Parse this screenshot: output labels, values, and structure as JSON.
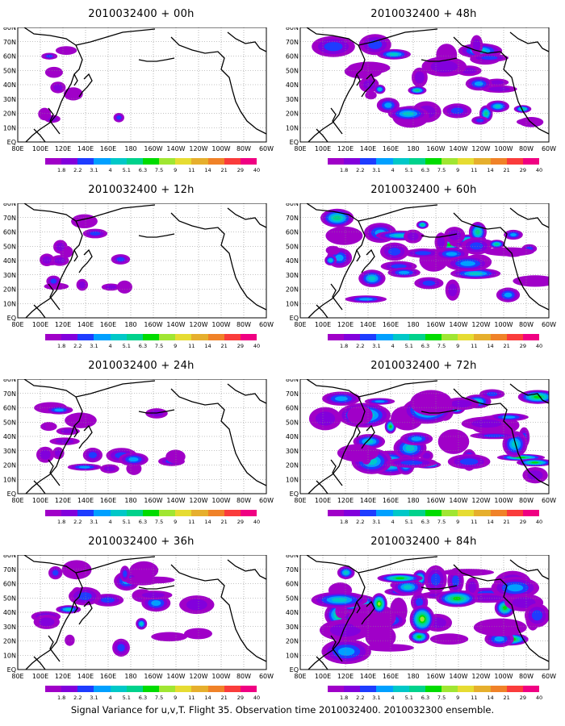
{
  "panels": [
    {
      "title": "2010032400 + 00h",
      "spread": 0.05
    },
    {
      "title": "2010032400 + 12h",
      "spread": 0.18
    },
    {
      "title": "2010032400 + 24h",
      "spread": 0.3
    },
    {
      "title": "2010032400 + 36h",
      "spread": 0.42
    },
    {
      "title": "2010032400 + 48h",
      "spread": 0.62
    },
    {
      "title": "2010032400 + 60h",
      "spread": 0.75
    },
    {
      "title": "2010032400 + 72h",
      "spread": 0.85
    },
    {
      "title": "2010032400 + 84h",
      "spread": 0.95
    }
  ],
  "y_ticks": [
    "EQ",
    "10N",
    "20N",
    "30N",
    "40N",
    "50N",
    "60N",
    "70N",
    "80N"
  ],
  "x_ticks": [
    "80E",
    "100E",
    "120E",
    "140E",
    "160E",
    "180",
    "160W",
    "140W",
    "120W",
    "100W",
    "80W",
    "60W"
  ],
  "colorbar": {
    "labels": [
      "1.8",
      "2.2",
      "3.1",
      "4",
      "5.1",
      "6.3",
      "7.5",
      "9",
      "11",
      "14",
      "21",
      "29",
      "40"
    ],
    "colors": [
      "#a000c8",
      "#8200dc",
      "#1e3cff",
      "#00a0ff",
      "#00c8c8",
      "#00d28c",
      "#00dc00",
      "#a0e632",
      "#e6dc32",
      "#e6af2d",
      "#f08228",
      "#fa3c3c",
      "#f00082"
    ]
  },
  "footer": "Signal Variance for u,v,T. Flight 35. Observation time 2010032400. 2010032300 ensemble."
}
